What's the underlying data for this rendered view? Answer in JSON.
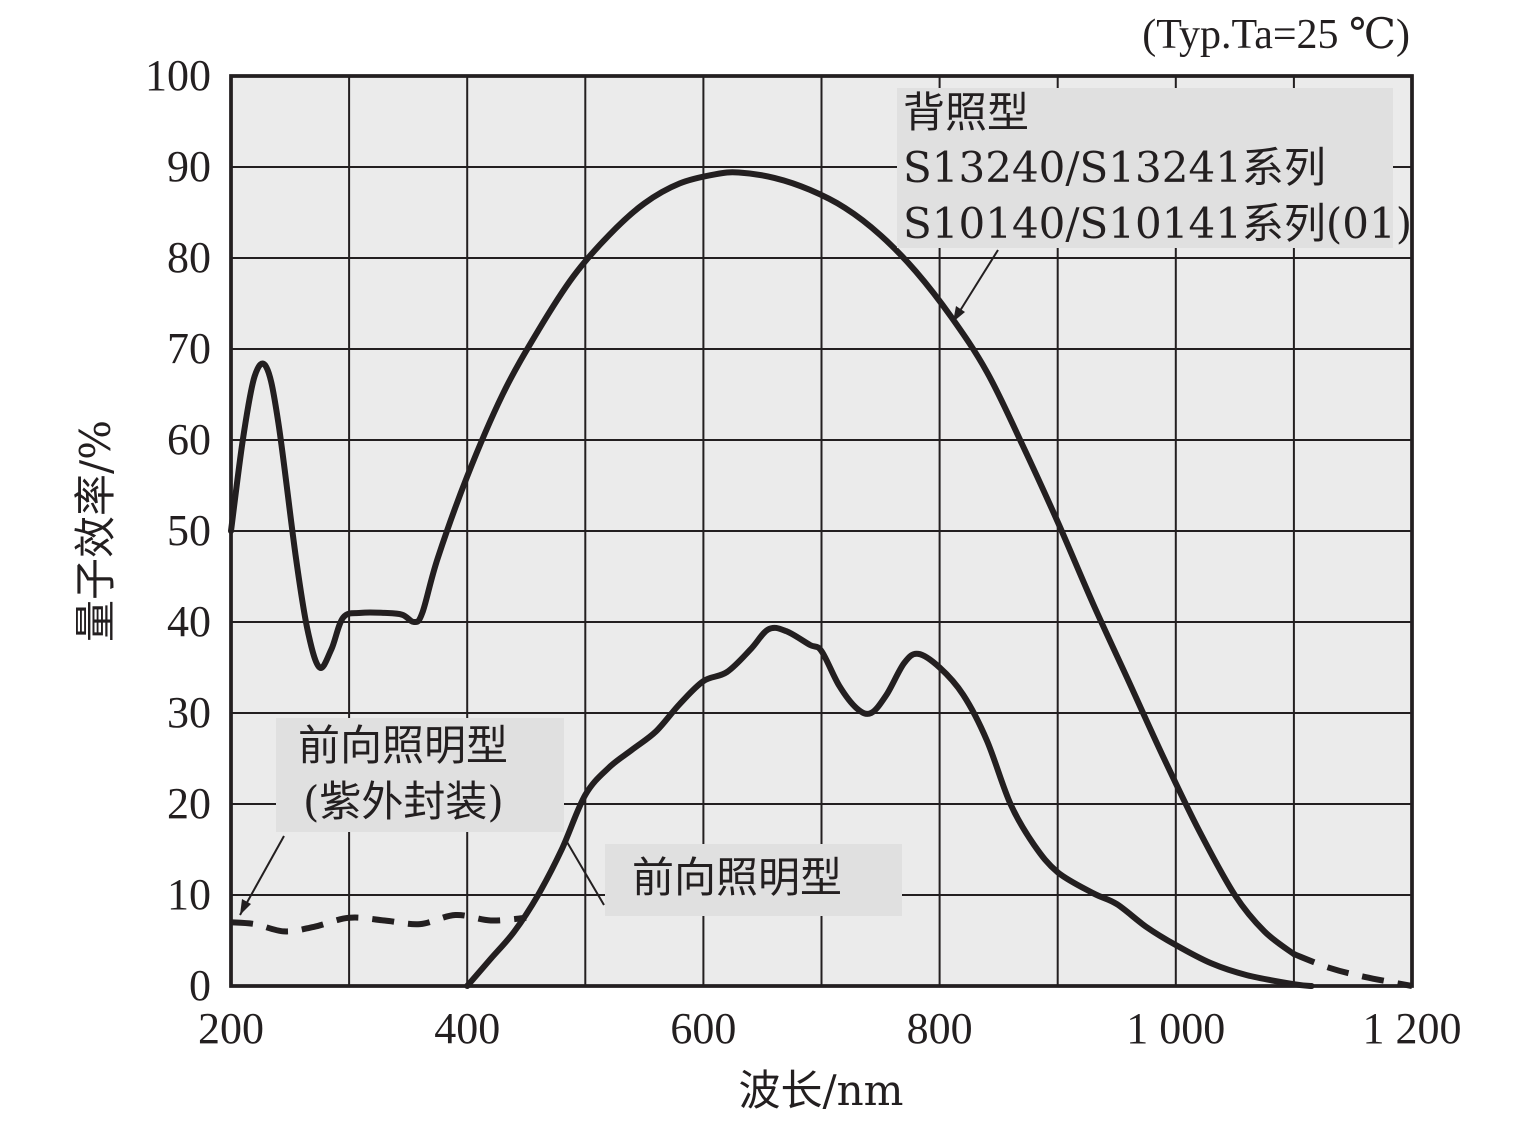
{
  "chart_data": {
    "type": "line",
    "title": "",
    "note": "(Typ.Ta=25 ℃)",
    "xlabel": "波长/nm",
    "ylabel": "量子效率/%",
    "xlim": [
      200,
      1200
    ],
    "ylim": [
      0,
      100
    ],
    "grid": true,
    "x_ticks": [
      200,
      300,
      400,
      500,
      600,
      700,
      800,
      900,
      1000,
      1100,
      1200
    ],
    "x_tick_labels": [
      "200",
      "400",
      "600",
      "800",
      "1 000",
      "1 200"
    ],
    "x_tick_label_values": [
      200,
      400,
      600,
      800,
      1000,
      1200
    ],
    "y_ticks": [
      0,
      10,
      20,
      30,
      40,
      50,
      60,
      70,
      80,
      90,
      100
    ],
    "y_tick_labels": [
      "0",
      "10",
      "20",
      "30",
      "40",
      "50",
      "60",
      "70",
      "80",
      "90",
      "100"
    ],
    "series": [
      {
        "key": "back",
        "style": "solid",
        "points": [
          [
            200,
            50
          ],
          [
            210,
            60
          ],
          [
            220,
            67
          ],
          [
            230,
            68
          ],
          [
            240,
            62
          ],
          [
            255,
            47
          ],
          [
            265,
            39
          ],
          [
            275,
            35
          ],
          [
            285,
            37
          ],
          [
            295,
            40.5
          ],
          [
            310,
            41
          ],
          [
            330,
            41
          ],
          [
            345,
            40.8
          ],
          [
            355,
            40
          ],
          [
            362,
            41
          ],
          [
            375,
            47
          ],
          [
            400,
            56
          ],
          [
            430,
            65
          ],
          [
            460,
            72
          ],
          [
            490,
            78
          ],
          [
            520,
            82.5
          ],
          [
            550,
            86
          ],
          [
            580,
            88.2
          ],
          [
            610,
            89.2
          ],
          [
            630,
            89.4
          ],
          [
            660,
            88.8
          ],
          [
            690,
            87.5
          ],
          [
            720,
            85.5
          ],
          [
            750,
            82.5
          ],
          [
            780,
            78.5
          ],
          [
            810,
            73.5
          ],
          [
            840,
            67.5
          ],
          [
            870,
            59.5
          ],
          [
            900,
            51
          ],
          [
            930,
            42
          ],
          [
            960,
            33.5
          ],
          [
            990,
            25
          ],
          [
            1020,
            17
          ],
          [
            1050,
            10
          ],
          [
            1075,
            6
          ],
          [
            1100,
            3.5
          ]
        ]
      },
      {
        "key": "back_tail",
        "style": "dashed",
        "points": [
          [
            1100,
            3.5
          ],
          [
            1130,
            2
          ],
          [
            1160,
            1
          ],
          [
            1200,
            0
          ]
        ]
      },
      {
        "key": "front",
        "style": "solid",
        "points": [
          [
            400,
            0
          ],
          [
            420,
            3
          ],
          [
            440,
            6
          ],
          [
            460,
            10
          ],
          [
            480,
            15
          ],
          [
            500,
            21
          ],
          [
            520,
            24
          ],
          [
            540,
            26
          ],
          [
            560,
            28
          ],
          [
            580,
            31
          ],
          [
            600,
            33.5
          ],
          [
            620,
            34.5
          ],
          [
            640,
            37
          ],
          [
            655,
            39.2
          ],
          [
            670,
            39
          ],
          [
            690,
            37.5
          ],
          [
            700,
            36.8
          ],
          [
            715,
            33
          ],
          [
            730,
            30.5
          ],
          [
            742,
            30
          ],
          [
            755,
            32
          ],
          [
            770,
            35.5
          ],
          [
            782,
            36.5
          ],
          [
            800,
            35
          ],
          [
            820,
            32
          ],
          [
            840,
            27
          ],
          [
            860,
            20
          ],
          [
            880,
            15.5
          ],
          [
            900,
            12.5
          ],
          [
            930,
            10.2
          ],
          [
            950,
            9
          ],
          [
            975,
            6.5
          ],
          [
            1000,
            4.5
          ],
          [
            1030,
            2.5
          ],
          [
            1060,
            1.2
          ],
          [
            1100,
            0.2
          ],
          [
            1115,
            0
          ]
        ]
      },
      {
        "key": "front_uv",
        "style": "dashed",
        "points": [
          [
            200,
            7
          ],
          [
            220,
            6.8
          ],
          [
            245,
            6
          ],
          [
            270,
            6.5
          ],
          [
            300,
            7.5
          ],
          [
            330,
            7.2
          ],
          [
            360,
            6.8
          ],
          [
            390,
            7.8
          ],
          [
            420,
            7.2
          ],
          [
            450,
            7.5
          ]
        ]
      }
    ],
    "annotations": {
      "back": [
        "背照型",
        "S13240/S13241系列",
        "S10140/S10141系列(01)"
      ],
      "front_uv": [
        "前向照明型",
        "(紫外封装)"
      ],
      "front": [
        "前向照明型"
      ]
    }
  }
}
